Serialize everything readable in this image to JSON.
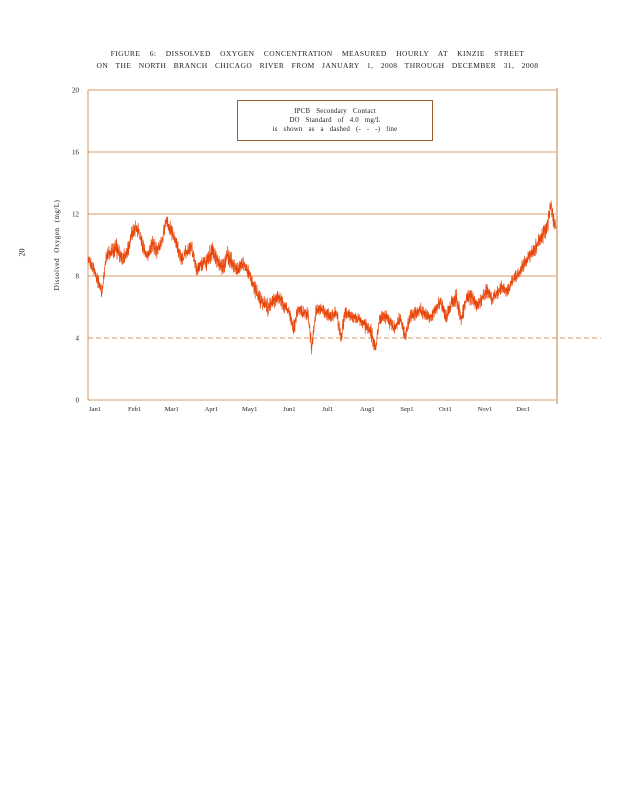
{
  "page": {
    "page_number": "20"
  },
  "title": {
    "line1": "FIGURE 6: DISSOLVED OXYGEN CONCENTRATION MEASURED HOURLY AT KINZIE STREET",
    "line2": "ON THE NORTH BRANCH CHICAGO RIVER FROM JANUARY 1, 2008 THROUGH DECEMBER 31, 2008"
  },
  "legend": {
    "lines": [
      "IPCB Secondary Contact",
      "DO Standard of 4.0 mg/L",
      "is shown as a dashed (- - -) line"
    ]
  },
  "chart_data": {
    "type": "line",
    "title": "FIGURE 6: DISSOLVED OXYGEN CONCENTRATION MEASURED HOURLY AT KINZIE STREET ON THE NORTH BRANCH CHICAGO RIVER FROM JANUARY 1, 2008 THROUGH DECEMBER 31, 2008",
    "xlabel": "",
    "ylabel": "Dissolved Oxygen (mg/L)",
    "ylim": [
      0,
      20
    ],
    "yticks": [
      0,
      4,
      8,
      12,
      16,
      20
    ],
    "xticklabels": [
      "Jan1",
      "Feb1",
      "Mar1",
      "Apr1",
      "May1",
      "Jun1",
      "Jul1",
      "Aug1",
      "Sep1",
      "Oct1",
      "Nov1",
      "Dec1"
    ],
    "x_tick_days": [
      0,
      31,
      60,
      91,
      121,
      152,
      182,
      213,
      244,
      274,
      305,
      335
    ],
    "days_total": 366,
    "grid_on": true,
    "grid_color": "#c87b3a",
    "standard_line": {
      "value": 4.0,
      "style": "dashed",
      "label": "IPCB Secondary Contact DO Standard of 4.0 mg/L"
    },
    "legend_position": "top-center",
    "series": [
      {
        "name": "Hourly dissolved oxygen (mg/L)",
        "color": "#e8470b",
        "points": [
          [
            0,
            9.0,
            0.5
          ],
          [
            4,
            8.6,
            0.6
          ],
          [
            8,
            7.6,
            0.7
          ],
          [
            11,
            6.9,
            0.5
          ],
          [
            14,
            9.2,
            0.6
          ],
          [
            18,
            9.6,
            0.8
          ],
          [
            22,
            9.9,
            0.9
          ],
          [
            26,
            9.1,
            0.7
          ],
          [
            30,
            9.4,
            0.8
          ],
          [
            34,
            10.6,
            0.8
          ],
          [
            38,
            11.2,
            0.7
          ],
          [
            42,
            10.2,
            0.7
          ],
          [
            46,
            9.1,
            0.6
          ],
          [
            50,
            10.1,
            0.8
          ],
          [
            54,
            9.6,
            0.7
          ],
          [
            58,
            10.3,
            0.7
          ],
          [
            61,
            11.6,
            0.6
          ],
          [
            65,
            10.9,
            0.7
          ],
          [
            69,
            10.1,
            0.7
          ],
          [
            73,
            9.1,
            0.6
          ],
          [
            77,
            9.6,
            0.8
          ],
          [
            81,
            9.9,
            0.7
          ],
          [
            85,
            8.4,
            0.6
          ],
          [
            89,
            8.8,
            0.7
          ],
          [
            93,
            8.9,
            0.9
          ],
          [
            97,
            9.6,
            0.9
          ],
          [
            101,
            9.1,
            0.8
          ],
          [
            105,
            8.5,
            0.8
          ],
          [
            109,
            9.3,
            0.9
          ],
          [
            113,
            8.9,
            0.8
          ],
          [
            117,
            8.3,
            0.7
          ],
          [
            121,
            8.9,
            0.6
          ],
          [
            125,
            8.3,
            0.7
          ],
          [
            129,
            7.5,
            0.8
          ],
          [
            133,
            6.7,
            0.9
          ],
          [
            137,
            6.3,
            0.8
          ],
          [
            141,
            5.9,
            0.8
          ],
          [
            145,
            6.4,
            0.7
          ],
          [
            149,
            6.7,
            0.7
          ],
          [
            153,
            6.1,
            0.6
          ],
          [
            157,
            5.7,
            0.7
          ],
          [
            161,
            4.5,
            0.8
          ],
          [
            164,
            5.9,
            0.6
          ],
          [
            168,
            5.7,
            0.6
          ],
          [
            172,
            5.5,
            0.7
          ],
          [
            175,
            3.3,
            0.7
          ],
          [
            178,
            5.7,
            0.6
          ],
          [
            182,
            5.9,
            0.5
          ],
          [
            186,
            5.6,
            0.6
          ],
          [
            190,
            5.4,
            0.6
          ],
          [
            194,
            5.7,
            0.6
          ],
          [
            198,
            4.1,
            0.8
          ],
          [
            201,
            5.6,
            0.6
          ],
          [
            205,
            5.5,
            0.5
          ],
          [
            209,
            5.3,
            0.5
          ],
          [
            213,
            5.2,
            0.6
          ],
          [
            217,
            4.8,
            0.7
          ],
          [
            221,
            4.5,
            0.7
          ],
          [
            225,
            3.3,
            0.8
          ],
          [
            228,
            5.3,
            0.6
          ],
          [
            232,
            5.4,
            0.6
          ],
          [
            236,
            5.1,
            0.7
          ],
          [
            240,
            4.7,
            0.6
          ],
          [
            244,
            5.3,
            0.6
          ],
          [
            248,
            4.1,
            0.7
          ],
          [
            252,
            5.4,
            0.6
          ],
          [
            256,
            5.6,
            0.6
          ],
          [
            260,
            5.8,
            0.7
          ],
          [
            264,
            5.5,
            0.6
          ],
          [
            268,
            5.3,
            0.6
          ],
          [
            272,
            5.9,
            0.6
          ],
          [
            276,
            6.3,
            0.8
          ],
          [
            280,
            5.3,
            0.7
          ],
          [
            284,
            6.2,
            0.8
          ],
          [
            288,
            6.6,
            0.8
          ],
          [
            292,
            5.3,
            0.8
          ],
          [
            296,
            6.5,
            0.7
          ],
          [
            300,
            6.7,
            0.7
          ],
          [
            304,
            6.1,
            0.6
          ],
          [
            308,
            6.5,
            0.6
          ],
          [
            312,
            7.1,
            0.7
          ],
          [
            316,
            6.5,
            0.6
          ],
          [
            320,
            6.9,
            0.6
          ],
          [
            324,
            7.3,
            0.6
          ],
          [
            328,
            7.0,
            0.6
          ],
          [
            332,
            7.7,
            0.6
          ],
          [
            336,
            8.1,
            0.6
          ],
          [
            340,
            8.6,
            0.7
          ],
          [
            344,
            9.1,
            0.7
          ],
          [
            348,
            9.6,
            0.8
          ],
          [
            352,
            10.1,
            0.8
          ],
          [
            356,
            10.7,
            0.9
          ],
          [
            359,
            11.1,
            0.9
          ],
          [
            362,
            12.7,
            0.5
          ],
          [
            364,
            11.6,
            0.8
          ],
          [
            366,
            11.2,
            0.7
          ]
        ]
      }
    ]
  }
}
